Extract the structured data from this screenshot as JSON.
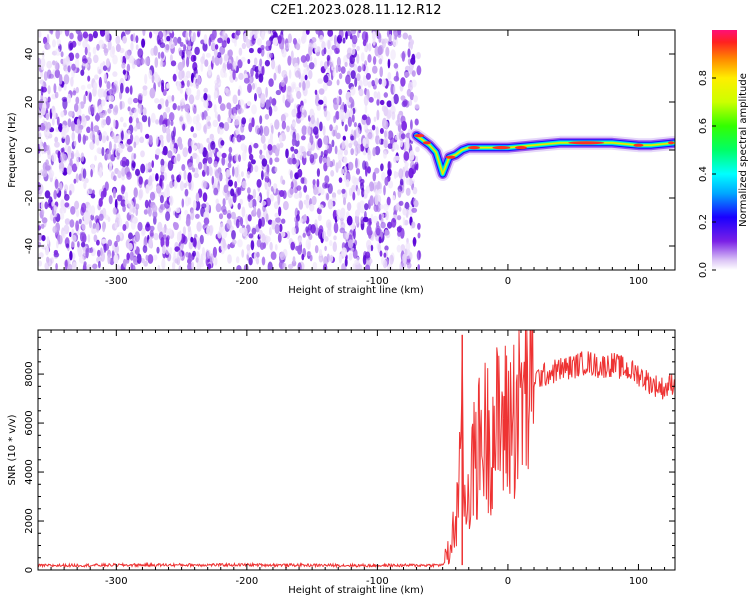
{
  "title": "C2E1.2023.028.11.12.R12",
  "chart_data": [
    {
      "type": "heatmap",
      "xlabel": "Height of straight line (km)",
      "ylabel": "Frequency (Hz)",
      "xlim": [
        -360,
        128
      ],
      "ylim": [
        -50,
        50
      ],
      "xticks": [
        -300,
        -200,
        -100,
        0,
        100
      ],
      "yticks": [
        -40,
        -20,
        0,
        20,
        40
      ],
      "noise_region_x": [
        -360,
        -68
      ],
      "signal_track": {
        "x": [
          -70,
          -65,
          -60,
          -55,
          -50,
          -45,
          -40,
          -35,
          -30,
          -20,
          -10,
          0,
          20,
          40,
          60,
          80,
          100,
          110,
          128
        ],
        "y": [
          6,
          4,
          2,
          -1,
          -10,
          -3,
          -2,
          0,
          1,
          1,
          1,
          1,
          2,
          3,
          3,
          3,
          2,
          2,
          3
        ]
      },
      "colorbar": {
        "label": "Normalized spectral amplitude",
        "range": [
          0,
          1
        ],
        "ticks": [
          "0.0",
          "0.2",
          "0.4",
          "0.6",
          "0.8"
        ]
      },
      "grid": false
    },
    {
      "type": "line",
      "xlabel": "Height of straight line (km)",
      "ylabel": "SNR (10 * v/v)",
      "xlim": [
        -360,
        128
      ],
      "ylim": [
        0,
        9800
      ],
      "xticks": [
        -300,
        -200,
        -100,
        0,
        100
      ],
      "yticks": [
        0,
        2000,
        4000,
        6000,
        8000
      ],
      "series": [
        {
          "color": "#ee3333",
          "x": [
            -360,
            -300,
            -200,
            -100,
            -50,
            -45,
            -40,
            -36,
            -35,
            -34,
            -30,
            -25,
            -20,
            -15,
            -10,
            0,
            10,
            20,
            30,
            40,
            50,
            60,
            70,
            80,
            90,
            100,
            110,
            120,
            128
          ],
          "y": [
            180,
            200,
            210,
            180,
            200,
            700,
            2000,
            4000,
            9600,
            2500,
            3500,
            4500,
            5500,
            5500,
            5800,
            6000,
            7000,
            7800,
            8000,
            8200,
            8300,
            8500,
            8300,
            8400,
            8200,
            8000,
            7600,
            7400,
            7700
          ]
        }
      ],
      "grid": false
    }
  ]
}
